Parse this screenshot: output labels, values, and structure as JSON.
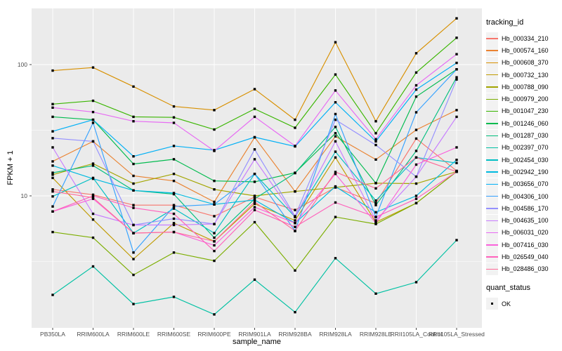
{
  "figure": {
    "panel_bg": "#EBEBEB",
    "grid_color": "#FFFFFF",
    "tick_color": "#333333",
    "tick_label_color": "#4D4D4D",
    "point_color": "#000000"
  },
  "axes": {
    "x_title": "sample_name",
    "y_title": "FPKM + 1",
    "y_ticks": [
      {
        "label": "100",
        "value": 100
      },
      {
        "label": "10",
        "value": 10
      }
    ],
    "y_minor": [
      31.62,
      3.162
    ]
  },
  "legend": {
    "tracking_title": "tracking_id",
    "quant_title": "quant_status",
    "quant_items": [
      {
        "label": "OK",
        "marker": "black-square"
      }
    ]
  },
  "chart_data": {
    "type": "line",
    "x_label": "sample_name",
    "y_label": "FPKM + 1",
    "y_scale": "log10",
    "ylim": [
      1.05,
      280
    ],
    "grid": true,
    "legend_position": "right",
    "point_marker": "filled-square",
    "categories": [
      "PB350LA",
      "RRIM600LA",
      "RRIM600LE",
      "RRIM600SE",
      "RRIM600PE",
      "RRIM901LA",
      "RRIM928BA",
      "RRIM928LA",
      "RRIM928LE",
      "RRII105LA_Control",
      "RRII105LA_Stressed"
    ],
    "series": [
      {
        "name": "Hb_000334_210",
        "color": "#F8766D",
        "values": [
          11.2,
          10.2,
          8.5,
          8.5,
          7.0,
          9.8,
          7.8,
          11.6,
          8.8,
          27.3,
          15.5
        ]
      },
      {
        "name": "Hb_000574_160",
        "color": "#EA8331",
        "values": [
          18.3,
          26,
          14.2,
          13,
          9.0,
          27.9,
          10.8,
          28.4,
          18.9,
          31.8,
          45
        ]
      },
      {
        "name": "Hb_000608_370",
        "color": "#D89000",
        "values": [
          90,
          95,
          68,
          48,
          45,
          65,
          38,
          148,
          37,
          122,
          225
        ]
      },
      {
        "name": "Hb_000732_130",
        "color": "#C09B00",
        "values": [
          13.7,
          6.6,
          3.3,
          6.2,
          4.5,
          8.7,
          6.5,
          19.6,
          6.3,
          8.8,
          15.3
        ]
      },
      {
        "name": "Hb_000788_090",
        "color": "#A3A500",
        "values": [
          14.5,
          17.6,
          12.4,
          14.7,
          11.2,
          10,
          10.8,
          11.6,
          12.5,
          12.4,
          15.3
        ]
      },
      {
        "name": "Hb_000979_200",
        "color": "#7CAE00",
        "values": [
          5.3,
          4.8,
          2.5,
          3.7,
          3.2,
          6.3,
          2.7,
          6.9,
          6.1,
          8.8,
          15.3
        ]
      },
      {
        "name": "Hb_001047_230",
        "color": "#39B600",
        "values": [
          50,
          53,
          40,
          39.6,
          32,
          46,
          33,
          84,
          30,
          87,
          160
        ]
      },
      {
        "name": "Hb_001246_060",
        "color": "#00BB4E",
        "values": [
          40,
          38,
          17.5,
          19,
          13,
          12.8,
          15,
          30,
          12.5,
          57,
          92
        ]
      },
      {
        "name": "Hb_001287_030",
        "color": "#00BF7D",
        "values": [
          15,
          17,
          11,
          10.3,
          4.8,
          9.5,
          14.9,
          33.5,
          8.5,
          22,
          80
        ]
      },
      {
        "name": "Hb_002397_070",
        "color": "#00C1A3",
        "values": [
          1.76,
          2.9,
          1.5,
          1.7,
          1.25,
          2.3,
          1.3,
          3.35,
          1.8,
          2.2,
          4.6
        ]
      },
      {
        "name": "Hb_002454_030",
        "color": "#00BFC4",
        "values": [
          9.9,
          13.7,
          5.2,
          8.0,
          5.2,
          14.7,
          6.9,
          21.7,
          9.2,
          19.6,
          17.8
        ]
      },
      {
        "name": "Hb_002942_190",
        "color": "#00BAE0",
        "values": [
          17,
          13.5,
          11,
          10.5,
          8.6,
          9.3,
          6.2,
          11.8,
          7.5,
          10,
          18.8
        ]
      },
      {
        "name": "Hb_003656_070",
        "color": "#00B0F6",
        "values": [
          31,
          38,
          20,
          24,
          22.3,
          28,
          23.8,
          51.6,
          26,
          64.5,
          103
        ]
      },
      {
        "name": "Hb_004306_100",
        "color": "#35A2FF",
        "values": [
          8.3,
          36,
          3.7,
          8.3,
          8.6,
          14.7,
          5.4,
          42,
          6.9,
          43.3,
          92
        ]
      },
      {
        "name": "Hb_004586_170",
        "color": "#9590FF",
        "values": [
          27.5,
          26,
          6.0,
          6.7,
          6.1,
          22.6,
          7.0,
          38,
          24.4,
          14,
          77
        ]
      },
      {
        "name": "Hb_004635_100",
        "color": "#C77CFF",
        "values": [
          23.4,
          7.3,
          6.0,
          6.0,
          6.1,
          19,
          6.9,
          26,
          6.5,
          14,
          40
        ]
      },
      {
        "name": "Hb_006031_020",
        "color": "#E76BF3",
        "values": [
          47,
          43.5,
          37,
          36,
          22,
          40,
          24,
          63.5,
          27,
          69.5,
          120
        ]
      },
      {
        "name": "Hb_007416_030",
        "color": "#FA62DB",
        "values": [
          7.6,
          9.5,
          5.2,
          5.3,
          4.2,
          8.2,
          6.2,
          14.7,
          6.2,
          17.3,
          23.4
        ]
      },
      {
        "name": "Hb_026549_040",
        "color": "#FF62BC",
        "values": [
          7.6,
          10.0,
          8.1,
          7.3,
          3.8,
          7.8,
          5.8,
          8.9,
          6.9,
          9.5,
          15.3
        ]
      },
      {
        "name": "Hb_028486_030",
        "color": "#FF6A98",
        "values": [
          10.8,
          9.7,
          5.2,
          5.3,
          4.5,
          9.0,
          5.4,
          15.2,
          11.4,
          19.6,
          15.3
        ]
      }
    ]
  }
}
